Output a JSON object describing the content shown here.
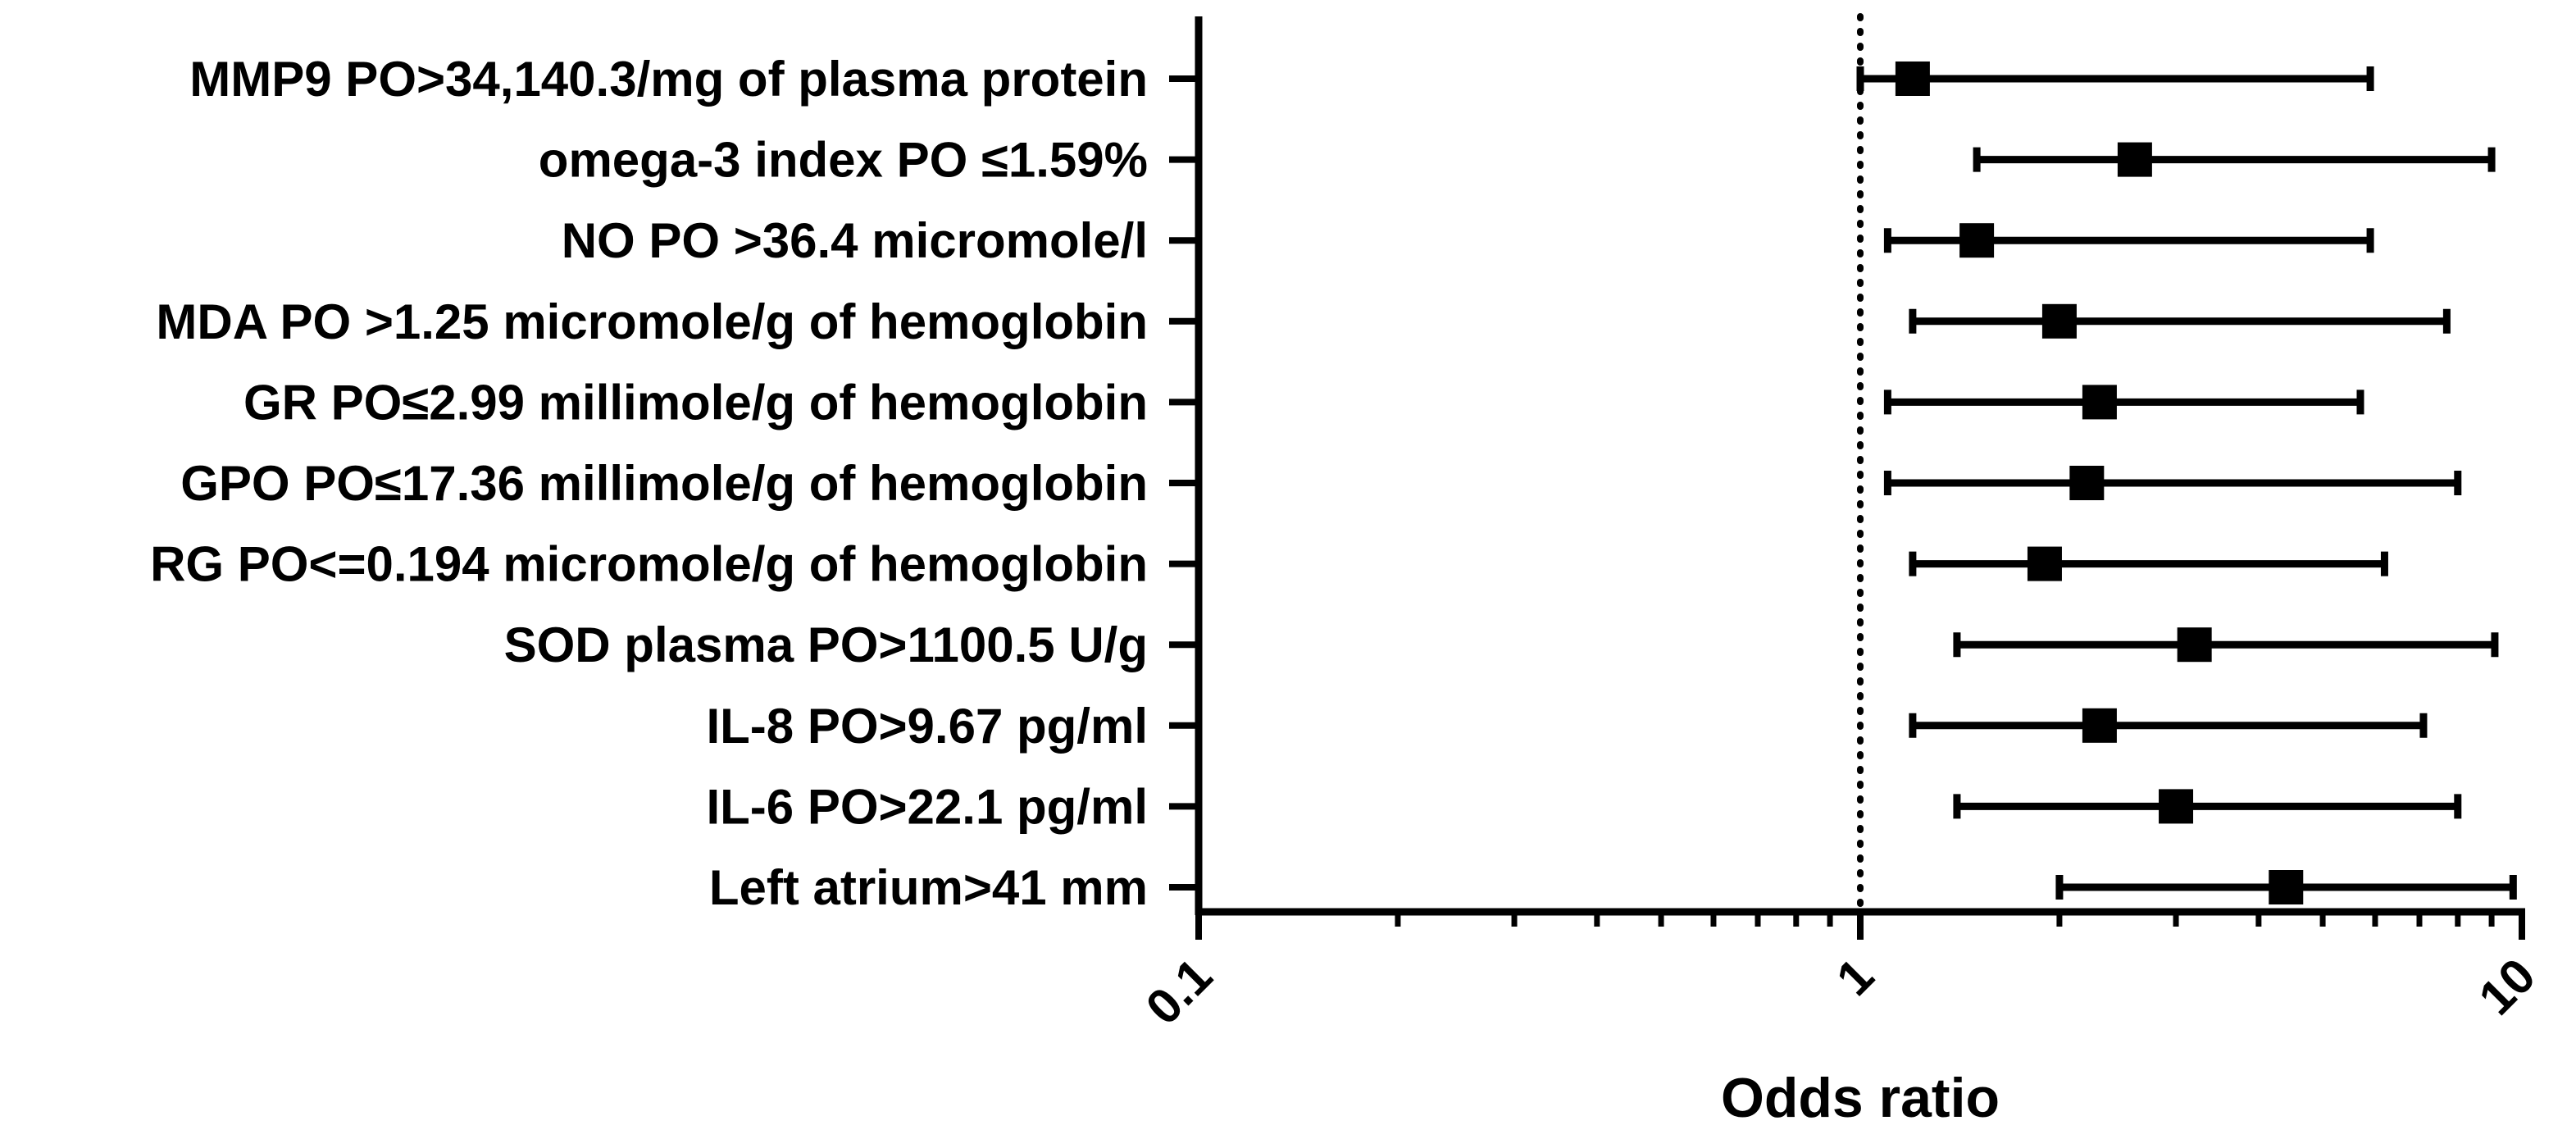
{
  "chart_data": {
    "type": "forest",
    "xlabel": "Odds ratio",
    "xscale": "log",
    "xlim": [
      0.1,
      10
    ],
    "x_ticks": [
      "0.1",
      "1",
      "10"
    ],
    "reference_line": 1,
    "grid": false,
    "colors": {
      "marker": "#000000",
      "axis": "#000000"
    },
    "rows": [
      {
        "label": "MMP9 PO>34,140.3/mg of plasma protein",
        "or": 1.2,
        "low": 1.0,
        "high": 5.9
      },
      {
        "label": "omega-3 index PO ≤1.59%",
        "or": 2.6,
        "low": 1.5,
        "high": 9.0
      },
      {
        "label": "NO PO >36.4 micromole/l",
        "or": 1.5,
        "low": 1.1,
        "high": 5.9
      },
      {
        "label": "MDA PO >1.25 micromole/g of hemoglobin",
        "or": 2.0,
        "low": 1.2,
        "high": 7.7
      },
      {
        "label": "GR PO≤2.99 millimole/g of hemoglobin",
        "or": 2.3,
        "low": 1.1,
        "high": 5.7
      },
      {
        "label": "GPO PO≤17.36 millimole/g of hemoglobin",
        "or": 2.2,
        "low": 1.1,
        "high": 8.0
      },
      {
        "label": "RG PO<=0.194 micromole/g of hemoglobin",
        "or": 1.9,
        "low": 1.2,
        "high": 6.2
      },
      {
        "label": "SOD plasma PO>1100.5 U/g",
        "or": 3.2,
        "low": 1.4,
        "high": 9.1
      },
      {
        "label": "IL-8 PO>9.67 pg/ml",
        "or": 2.3,
        "low": 1.2,
        "high": 7.1
      },
      {
        "label": "IL-6 PO>22.1 pg/ml",
        "or": 3.0,
        "low": 1.4,
        "high": 8.0
      },
      {
        "label": "Left atrium>41 mm",
        "or": 4.4,
        "low": 2.0,
        "high": 9.7
      }
    ]
  }
}
